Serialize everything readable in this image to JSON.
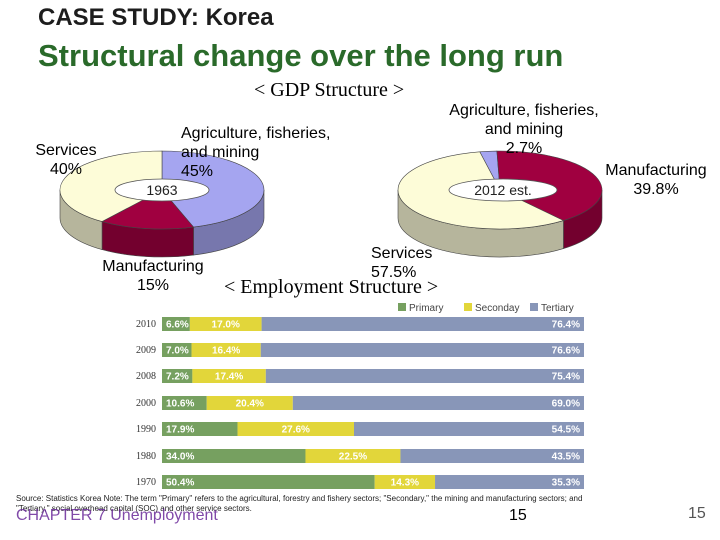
{
  "header": {
    "kicker": "CASE STUDY: Korea",
    "title": "Structural change over the long run"
  },
  "gdp": {
    "heading": "< GDP Structure >",
    "colors": {
      "agriculture": "#a5a5f0",
      "manufacturing": "#a00040",
      "services": "#fdfcd8"
    },
    "pie_1963": {
      "badge": "1963",
      "agri_label": "Agriculture, fisheries,\nand mining\n45%",
      "services_label": "Services\n40%",
      "manu_label": "Manufacturing\n15%"
    },
    "pie_2012": {
      "badge": "2012 est.",
      "agri_label": "Agriculture, fisheries,\nand mining\n2.7%",
      "manu_label": "Manufacturing\n39.8%",
      "services_label": "Services\n57.5%"
    }
  },
  "employment": {
    "heading": "< Employment Structure >",
    "colors": {
      "primary": "#76a060",
      "secondary": "#e2d63a",
      "tertiary": "#8896b8"
    }
  },
  "chart_data": [
    {
      "type": "pie",
      "badge": "1963",
      "categories": [
        "Agriculture, fisheries, and mining",
        "Manufacturing",
        "Services"
      ],
      "values": [
        45,
        15,
        40
      ]
    },
    {
      "type": "pie",
      "badge": "2012 est.",
      "categories": [
        "Agriculture, fisheries, and mining",
        "Manufacturing",
        "Services"
      ],
      "values": [
        2.7,
        39.8,
        57.5
      ]
    },
    {
      "type": "bar",
      "orientation": "horizontal",
      "stacked": true,
      "title": "< Employment Structure >",
      "legend_position": "top-right",
      "categories": [
        "2010",
        "2009",
        "2008",
        "2000",
        "1990",
        "1980",
        "1970"
      ],
      "series": [
        {
          "name": "Primary",
          "values": [
            6.6,
            7.0,
            7.2,
            10.6,
            17.9,
            34.0,
            50.4
          ],
          "labels": [
            "6.6%",
            "7.0%",
            "7.2%",
            "10.6%",
            "17.9%",
            "34.0%",
            "50.4%"
          ]
        },
        {
          "name": "Seconday",
          "values": [
            17.0,
            16.4,
            17.4,
            20.4,
            27.6,
            22.5,
            14.3
          ],
          "labels": [
            "17.0%",
            "16.4%",
            "17.4%",
            "20.4%",
            "27.6%",
            "22.5%",
            "14.3%"
          ]
        },
        {
          "name": "Tertiary",
          "values": [
            76.4,
            76.6,
            75.4,
            69.0,
            54.5,
            43.5,
            35.3
          ],
          "labels": [
            "76.4%",
            "76.6%",
            "75.4%",
            "69.0%",
            "54.5%",
            "43.5%",
            "35.3%"
          ]
        }
      ]
    }
  ],
  "footer": {
    "source": "Source: Statistics Korea Note: The term \"Primary\" refers to the agricultural, forestry and fishery sectors; \"Secondary,\" the mining and manufacturing sectors; and \"Tertiary,\" social overhead capital (SOC) and other service sectors.",
    "chapter": "CHAPTER 7 Unemployment",
    "page_mid": "15",
    "page_right": "15"
  }
}
